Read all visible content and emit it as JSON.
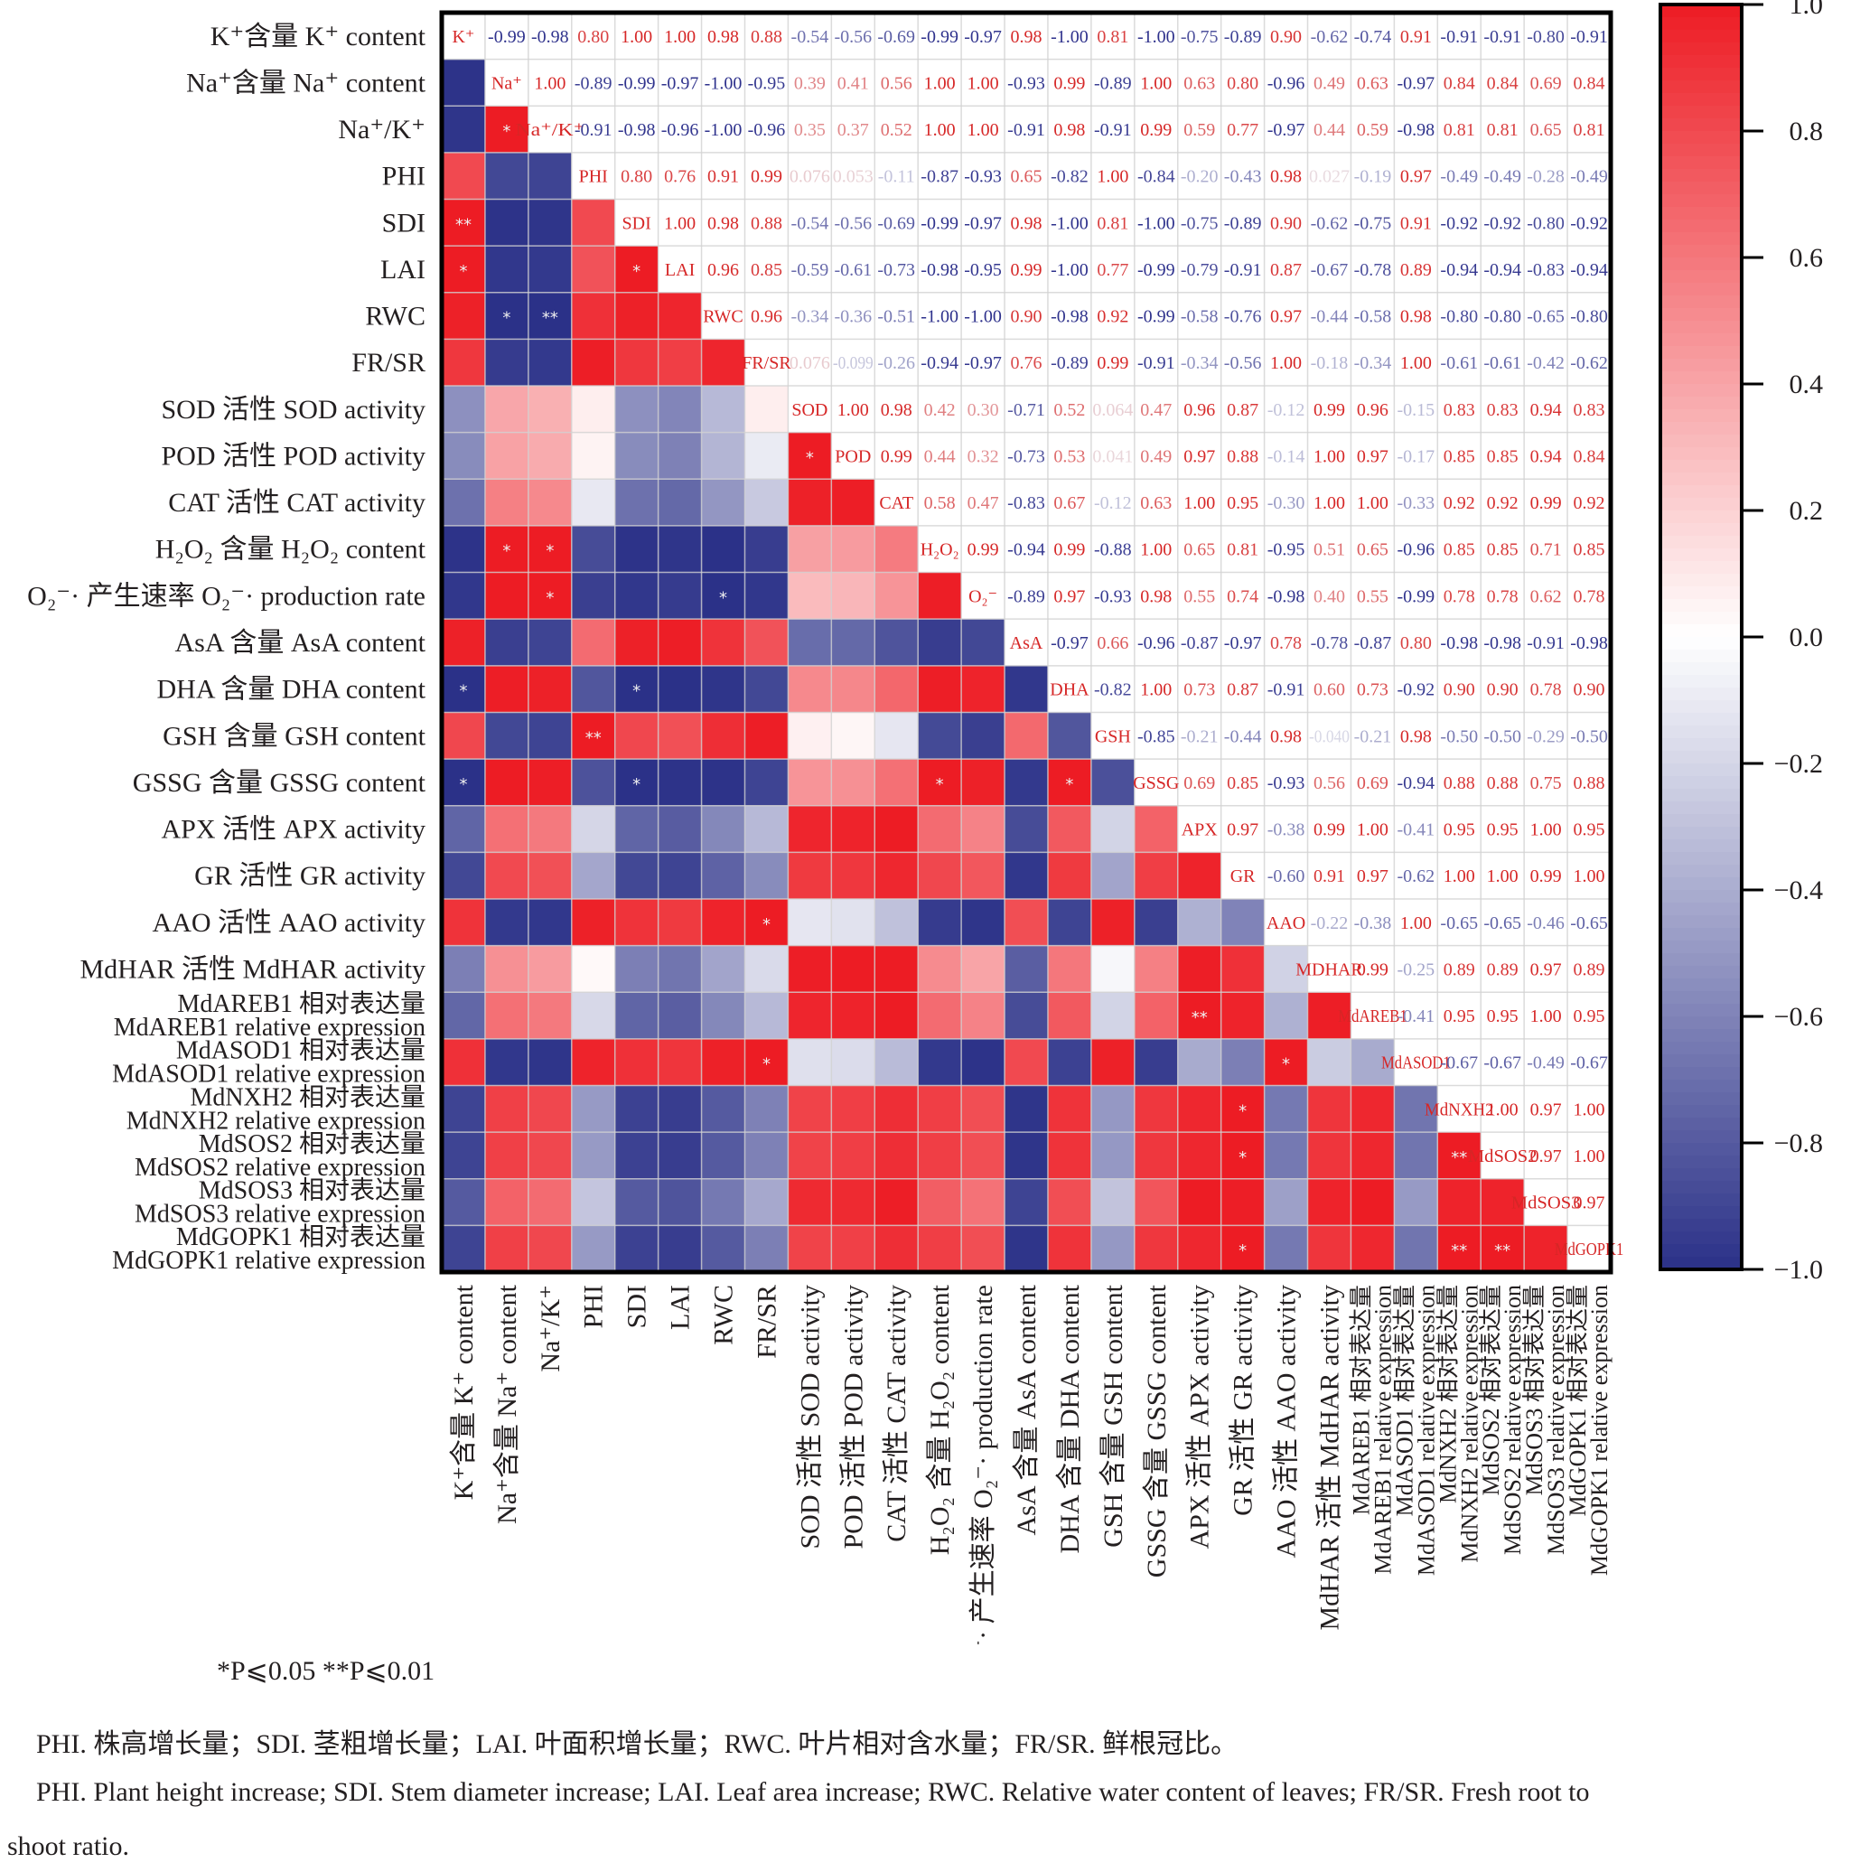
{
  "chart_data": {
    "type": "heatmap",
    "title": "",
    "subtype": "correlation-matrix (upper triangle: coefficients, lower triangle: color + significance)",
    "colorbar": {
      "min": -1.0,
      "max": 1.0,
      "ticks": [
        "1.0",
        "0.8",
        "0.6",
        "0.4",
        "0.2",
        "0.0",
        "−0.2",
        "−0.4",
        "−0.6",
        "−0.8",
        "−1.0"
      ],
      "low_color": "#2b3188",
      "mid_color": "#ffffff",
      "high_color": "#ed1c24"
    },
    "variables": [
      {
        "short": "K⁺",
        "row_label": [
          "K⁺含量 K⁺ content"
        ],
        "col_label": [
          "K⁺含量 K⁺ content"
        ]
      },
      {
        "short": "Na⁺",
        "row_label": [
          "Na⁺含量 Na⁺ content"
        ],
        "col_label": [
          "Na⁺含量 Na⁺ content"
        ]
      },
      {
        "short": "Na⁺/K⁺",
        "row_label": [
          "Na⁺/K⁺"
        ],
        "col_label": [
          "Na⁺/K⁺"
        ]
      },
      {
        "short": "PHI",
        "row_label": [
          "PHI"
        ],
        "col_label": [
          "PHI"
        ]
      },
      {
        "short": "SDI",
        "row_label": [
          "SDI"
        ],
        "col_label": [
          "SDI"
        ]
      },
      {
        "short": "LAI",
        "row_label": [
          "LAI"
        ],
        "col_label": [
          "LAI"
        ]
      },
      {
        "short": "RWC",
        "row_label": [
          "RWC"
        ],
        "col_label": [
          "RWC"
        ]
      },
      {
        "short": "FR/SR",
        "row_label": [
          "FR/SR"
        ],
        "col_label": [
          "FR/SR"
        ]
      },
      {
        "short": "SOD",
        "row_label": [
          "SOD 活性 SOD activity"
        ],
        "col_label": [
          "SOD 活性 SOD activity"
        ]
      },
      {
        "short": "POD",
        "row_label": [
          "POD 活性 POD activity"
        ],
        "col_label": [
          "POD 活性 POD activity"
        ]
      },
      {
        "short": "CAT",
        "row_label": [
          "CAT 活性 CAT activity"
        ],
        "col_label": [
          "CAT 活性 CAT activity"
        ]
      },
      {
        "short": "H₂O₂",
        "row_label": [
          "H₂O₂ 含量 H₂O₂ content"
        ],
        "col_label": [
          "H₂O₂ 含量 H₂O₂ content"
        ]
      },
      {
        "short": "O₂⁻",
        "row_label": [
          "O₂⁻· 产生速率 O₂⁻· production rate"
        ],
        "col_label": [
          "O₂⁻· 产生速率 O₂⁻· production rate"
        ]
      },
      {
        "short": "AsA",
        "row_label": [
          "AsA 含量 AsA content"
        ],
        "col_label": [
          "AsA 含量 AsA content"
        ]
      },
      {
        "short": "DHA",
        "row_label": [
          "DHA 含量 DHA content"
        ],
        "col_label": [
          "DHA 含量 DHA content"
        ]
      },
      {
        "short": "GSH",
        "row_label": [
          "GSH 含量 GSH content"
        ],
        "col_label": [
          "GSH 含量 GSH content"
        ]
      },
      {
        "short": "GSSG",
        "row_label": [
          "GSSG 含量 GSSG content"
        ],
        "col_label": [
          "GSSG 含量 GSSG content"
        ]
      },
      {
        "short": "APX",
        "row_label": [
          "APX 活性 APX activity"
        ],
        "col_label": [
          "APX 活性 APX activity"
        ]
      },
      {
        "short": "GR",
        "row_label": [
          "GR 活性 GR activity"
        ],
        "col_label": [
          "GR 活性 GR activity"
        ]
      },
      {
        "short": "AAO",
        "row_label": [
          "AAO 活性 AAO activity"
        ],
        "col_label": [
          "AAO 活性 AAO activity"
        ]
      },
      {
        "short": "MDHAR",
        "row_label": [
          "MdHAR 活性 MdHAR activity"
        ],
        "col_label": [
          "MdHAR 活性 MdHAR activity"
        ]
      },
      {
        "short": "MdAREB1",
        "row_label": [
          "MdAREB1 相对表达量",
          "MdAREB1 relative expression"
        ],
        "col_label": [
          "MdAREB1 相对表达量",
          "MdAREB1 relative expression"
        ]
      },
      {
        "short": "MdASOD1",
        "row_label": [
          "MdASOD1 相对表达量",
          "MdASOD1 relative expression"
        ],
        "col_label": [
          "MdASOD1 相对表达量",
          "MdASOD1 relative expression"
        ]
      },
      {
        "short": "MdNXH2",
        "row_label": [
          "MdNXH2 相对表达量",
          "MdNXH2 relative expression"
        ],
        "col_label": [
          "MdNXH2 相对表达量",
          "MdNXH2 relative expression"
        ]
      },
      {
        "short": "MdSOS2",
        "row_label": [
          "MdSOS2 相对表达量",
          "MdSOS2 relative expression"
        ],
        "col_label": [
          "MdSOS2 相对表达量",
          "MdSOS2 relative expression"
        ]
      },
      {
        "short": "MdSOS3",
        "row_label": [
          "MdSOS3 相对表达量",
          "MdSOS3 relative expression"
        ],
        "col_label": [
          "MdSOS3 相对表达量",
          "MdSOS3 relative expression"
        ]
      },
      {
        "short": "MdGOPK1",
        "row_label": [
          "MdGOPK1 相对表达量",
          "MdGOPK1 relative expression"
        ],
        "col_label": [
          "MdGOPK1 相对表达量",
          "MdGOPK1 relative expression"
        ]
      }
    ],
    "upper_triangle_values": [
      [
        "-0.99",
        "-0.98",
        "0.80",
        "1.00",
        "1.00",
        "0.98",
        "0.88",
        "-0.54",
        "-0.56",
        "-0.69",
        "-0.99",
        "-0.97",
        "0.98",
        "-1.00",
        "0.81",
        "-1.00",
        "-0.75",
        "-0.89",
        "0.90",
        "-0.62",
        "-0.74",
        "0.91",
        "-0.91",
        "-0.91",
        "-0.80",
        "-0.91"
      ],
      [
        "1.00",
        "-0.89",
        "-0.99",
        "-0.97",
        "-1.00",
        "-0.95",
        "0.39",
        "0.41",
        "0.56",
        "1.00",
        "1.00",
        "-0.93",
        "0.99",
        "-0.89",
        "1.00",
        "0.63",
        "0.80",
        "-0.96",
        "0.49",
        "0.63",
        "-0.97",
        "0.84",
        "0.84",
        "0.69",
        "0.84"
      ],
      [
        "-0.91",
        "-0.98",
        "-0.96",
        "-1.00",
        "-0.96",
        "0.35",
        "0.37",
        "0.52",
        "1.00",
        "1.00",
        "-0.91",
        "0.98",
        "-0.91",
        "0.99",
        "0.59",
        "0.77",
        "-0.97",
        "0.44",
        "0.59",
        "-0.98",
        "0.81",
        "0.81",
        "0.65",
        "0.81"
      ],
      [
        "0.80",
        "0.76",
        "0.91",
        "0.99",
        "0.076",
        "0.053",
        "-0.11",
        "-0.87",
        "-0.93",
        "0.65",
        "-0.82",
        "1.00",
        "-0.84",
        "-0.20",
        "-0.43",
        "0.98",
        "0.027",
        "-0.19",
        "0.97",
        "-0.49",
        "-0.49",
        "-0.28",
        "-0.49"
      ],
      [
        "1.00",
        "0.98",
        "0.88",
        "-0.54",
        "-0.56",
        "-0.69",
        "-0.99",
        "-0.97",
        "0.98",
        "-1.00",
        "0.81",
        "-1.00",
        "-0.75",
        "-0.89",
        "0.90",
        "-0.62",
        "-0.75",
        "0.91",
        "-0.92",
        "-0.92",
        "-0.80",
        "-0.92"
      ],
      [
        "0.96",
        "0.85",
        "-0.59",
        "-0.61",
        "-0.73",
        "-0.98",
        "-0.95",
        "0.99",
        "-1.00",
        "0.77",
        "-0.99",
        "-0.79",
        "-0.91",
        "0.87",
        "-0.67",
        "-0.78",
        "0.89",
        "-0.94",
        "-0.94",
        "-0.83",
        "-0.94"
      ],
      [
        "0.96",
        "-0.34",
        "-0.36",
        "-0.51",
        "-1.00",
        "-1.00",
        "0.90",
        "-0.98",
        "0.92",
        "-0.99",
        "-0.58",
        "-0.76",
        "0.97",
        "-0.44",
        "-0.58",
        "0.98",
        "-0.80",
        "-0.80",
        "-0.65",
        "-0.80"
      ],
      [
        "0.076",
        "-0.099",
        "-0.26",
        "-0.94",
        "-0.97",
        "0.76",
        "-0.89",
        "0.99",
        "-0.91",
        "-0.34",
        "-0.56",
        "1.00",
        "-0.18",
        "-0.34",
        "1.00",
        "-0.61",
        "-0.61",
        "-0.42",
        "-0.62"
      ],
      [
        "1.00",
        "0.98",
        "0.42",
        "0.30",
        "-0.71",
        "0.52",
        "0.064",
        "0.47",
        "0.96",
        "0.87",
        "-0.12",
        "0.99",
        "0.96",
        "-0.15",
        "0.83",
        "0.83",
        "0.94",
        "0.83"
      ],
      [
        "0.99",
        "0.44",
        "0.32",
        "-0.73",
        "0.53",
        "0.041",
        "0.49",
        "0.97",
        "0.88",
        "-0.14",
        "1.00",
        "0.97",
        "-0.17",
        "0.85",
        "0.85",
        "0.94",
        "0.84"
      ],
      [
        "0.58",
        "0.47",
        "-0.83",
        "0.67",
        "-0.12",
        "0.63",
        "1.00",
        "0.95",
        "-0.30",
        "1.00",
        "1.00",
        "-0.33",
        "0.92",
        "0.92",
        "0.99",
        "0.92"
      ],
      [
        "0.99",
        "-0.94",
        "0.99",
        "-0.88",
        "1.00",
        "0.65",
        "0.81",
        "-0.95",
        "0.51",
        "0.65",
        "-0.96",
        "0.85",
        "0.85",
        "0.71",
        "0.85"
      ],
      [
        "-0.89",
        "0.97",
        "-0.93",
        "0.98",
        "0.55",
        "0.74",
        "-0.98",
        "0.40",
        "0.55",
        "-0.99",
        "0.78",
        "0.78",
        "0.62",
        "0.78"
      ],
      [
        "-0.97",
        "0.66",
        "-0.96",
        "-0.87",
        "-0.97",
        "0.78",
        "-0.78",
        "-0.87",
        "0.80",
        "-0.98",
        "-0.98",
        "-0.91",
        "-0.98"
      ],
      [
        "-0.82",
        "1.00",
        "0.73",
        "0.87",
        "-0.91",
        "0.60",
        "0.73",
        "-0.92",
        "0.90",
        "0.90",
        "0.78",
        "0.90"
      ],
      [
        "-0.85",
        "-0.21",
        "-0.44",
        "0.98",
        "-0.040",
        "-0.21",
        "0.98",
        "-0.50",
        "-0.50",
        "-0.29",
        "-0.50"
      ],
      [
        "0.69",
        "0.85",
        "-0.93",
        "0.56",
        "0.69",
        "-0.94",
        "0.88",
        "0.88",
        "0.75",
        "0.88"
      ],
      [
        "0.97",
        "-0.38",
        "0.99",
        "1.00",
        "-0.41",
        "0.95",
        "0.95",
        "1.00",
        "0.95"
      ],
      [
        "-0.60",
        "0.91",
        "0.97",
        "-0.62",
        "1.00",
        "1.00",
        "0.99",
        "1.00"
      ],
      [
        "-0.22",
        "-0.38",
        "1.00",
        "-0.65",
        "-0.65",
        "-0.46",
        "-0.65"
      ],
      [
        "0.99",
        "-0.25",
        "0.89",
        "0.89",
        "0.97",
        "0.89"
      ],
      [
        "-0.41",
        "0.95",
        "0.95",
        "1.00",
        "0.95"
      ],
      [
        "-0.67",
        "-0.67",
        "-0.49",
        "-0.67"
      ],
      [
        "1.00",
        "0.97",
        "1.00"
      ],
      [
        "0.97",
        "1.00"
      ],
      [
        "0.97"
      ],
      []
    ],
    "significance": [
      {
        "row": 2,
        "col": 1,
        "mark": "*"
      },
      {
        "row": 4,
        "col": 0,
        "mark": "**"
      },
      {
        "row": 5,
        "col": 0,
        "mark": "*"
      },
      {
        "row": 5,
        "col": 4,
        "mark": "*"
      },
      {
        "row": 6,
        "col": 1,
        "mark": "*"
      },
      {
        "row": 6,
        "col": 2,
        "mark": "**"
      },
      {
        "row": 9,
        "col": 8,
        "mark": "*"
      },
      {
        "row": 11,
        "col": 1,
        "mark": "*"
      },
      {
        "row": 11,
        "col": 2,
        "mark": "*"
      },
      {
        "row": 12,
        "col": 2,
        "mark": "*"
      },
      {
        "row": 12,
        "col": 6,
        "mark": "*"
      },
      {
        "row": 14,
        "col": 0,
        "mark": "*"
      },
      {
        "row": 14,
        "col": 4,
        "mark": "*"
      },
      {
        "row": 15,
        "col": 3,
        "mark": "**"
      },
      {
        "row": 16,
        "col": 0,
        "mark": "*"
      },
      {
        "row": 16,
        "col": 4,
        "mark": "*"
      },
      {
        "row": 16,
        "col": 11,
        "mark": "*"
      },
      {
        "row": 16,
        "col": 14,
        "mark": "*"
      },
      {
        "row": 19,
        "col": 7,
        "mark": "*"
      },
      {
        "row": 21,
        "col": 17,
        "mark": "**"
      },
      {
        "row": 22,
        "col": 7,
        "mark": "*"
      },
      {
        "row": 22,
        "col": 19,
        "mark": "*"
      },
      {
        "row": 23,
        "col": 18,
        "mark": "*"
      },
      {
        "row": 24,
        "col": 18,
        "mark": "*"
      },
      {
        "row": 24,
        "col": 23,
        "mark": "**"
      },
      {
        "row": 26,
        "col": 18,
        "mark": "*"
      },
      {
        "row": 26,
        "col": 23,
        "mark": "**"
      },
      {
        "row": 26,
        "col": 24,
        "mark": "**"
      }
    ],
    "legend_position": "right",
    "significance_note": "*P⩽0.05 **P⩽0.01"
  },
  "captions": {
    "significance_note": "*P⩽0.05  **P⩽0.01",
    "zh": "PHI. 株高增长量；SDI. 茎粗增长量；LAI. 叶面积增长量；RWC. 叶片相对含水量；FR/SR. 鲜根冠比。",
    "en_line1": "PHI. Plant height increase; SDI. Stem diameter increase; LAI. Leaf area increase; RWC. Relative water content of leaves; FR/SR. Fresh root to",
    "en_line2": "shoot ratio."
  }
}
